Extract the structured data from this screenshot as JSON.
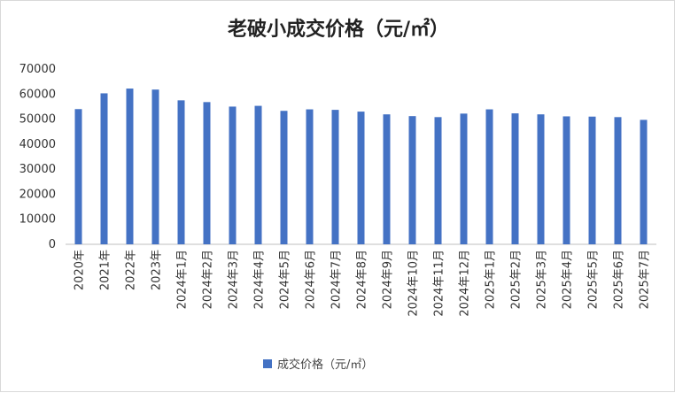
{
  "chart_data": {
    "type": "bar",
    "title": "老破小成交价格（元/㎡）",
    "categories": [
      "2020年",
      "2021年",
      "2022年",
      "2023年",
      "2024年1月",
      "2024年2月",
      "2024年3月",
      "2024年4月",
      "2024年5月",
      "2024年6月",
      "2024年7月",
      "2024年8月",
      "2024年9月",
      "2024年10月",
      "2024年11月",
      "2024年12月",
      "2025年1月",
      "2025年2月",
      "2025年3月",
      "2025年4月",
      "2025年5月",
      "2025年6月",
      "2025年7月"
    ],
    "series": [
      {
        "name": "成交价格（元/㎡）",
        "color": "#4472C4",
        "values": [
          54000,
          60300,
          62200,
          61800,
          57500,
          56800,
          55000,
          55300,
          53300,
          53900,
          53700,
          53000,
          51900,
          51200,
          50800,
          52200,
          53900,
          52300,
          51900,
          51100,
          51000,
          50800,
          49700
        ]
      }
    ],
    "ylim": [
      0,
      70000
    ],
    "yticks": [
      "0",
      "10000",
      "20000",
      "30000",
      "40000",
      "50000",
      "60000",
      "70000"
    ],
    "grid": false,
    "legend_position": "bottom"
  }
}
